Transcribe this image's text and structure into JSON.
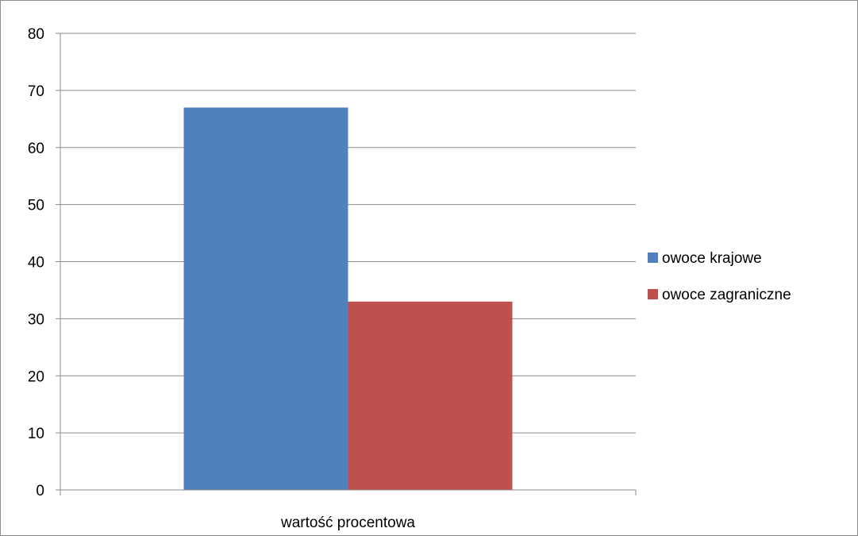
{
  "chart_data": {
    "type": "bar",
    "categories": [
      "wartość procentowa"
    ],
    "series": [
      {
        "name": "owoce krajowe",
        "values": [
          67
        ],
        "color": "#4F81BD"
      },
      {
        "name": "owoce zagraniczne",
        "values": [
          33
        ],
        "color": "#C0504D"
      }
    ],
    "title": "",
    "xlabel": "",
    "ylabel": "",
    "ylim": [
      0,
      80
    ],
    "yticks": [
      0,
      10,
      20,
      30,
      40,
      50,
      60,
      70,
      80
    ],
    "grid": true,
    "legend": "right"
  }
}
